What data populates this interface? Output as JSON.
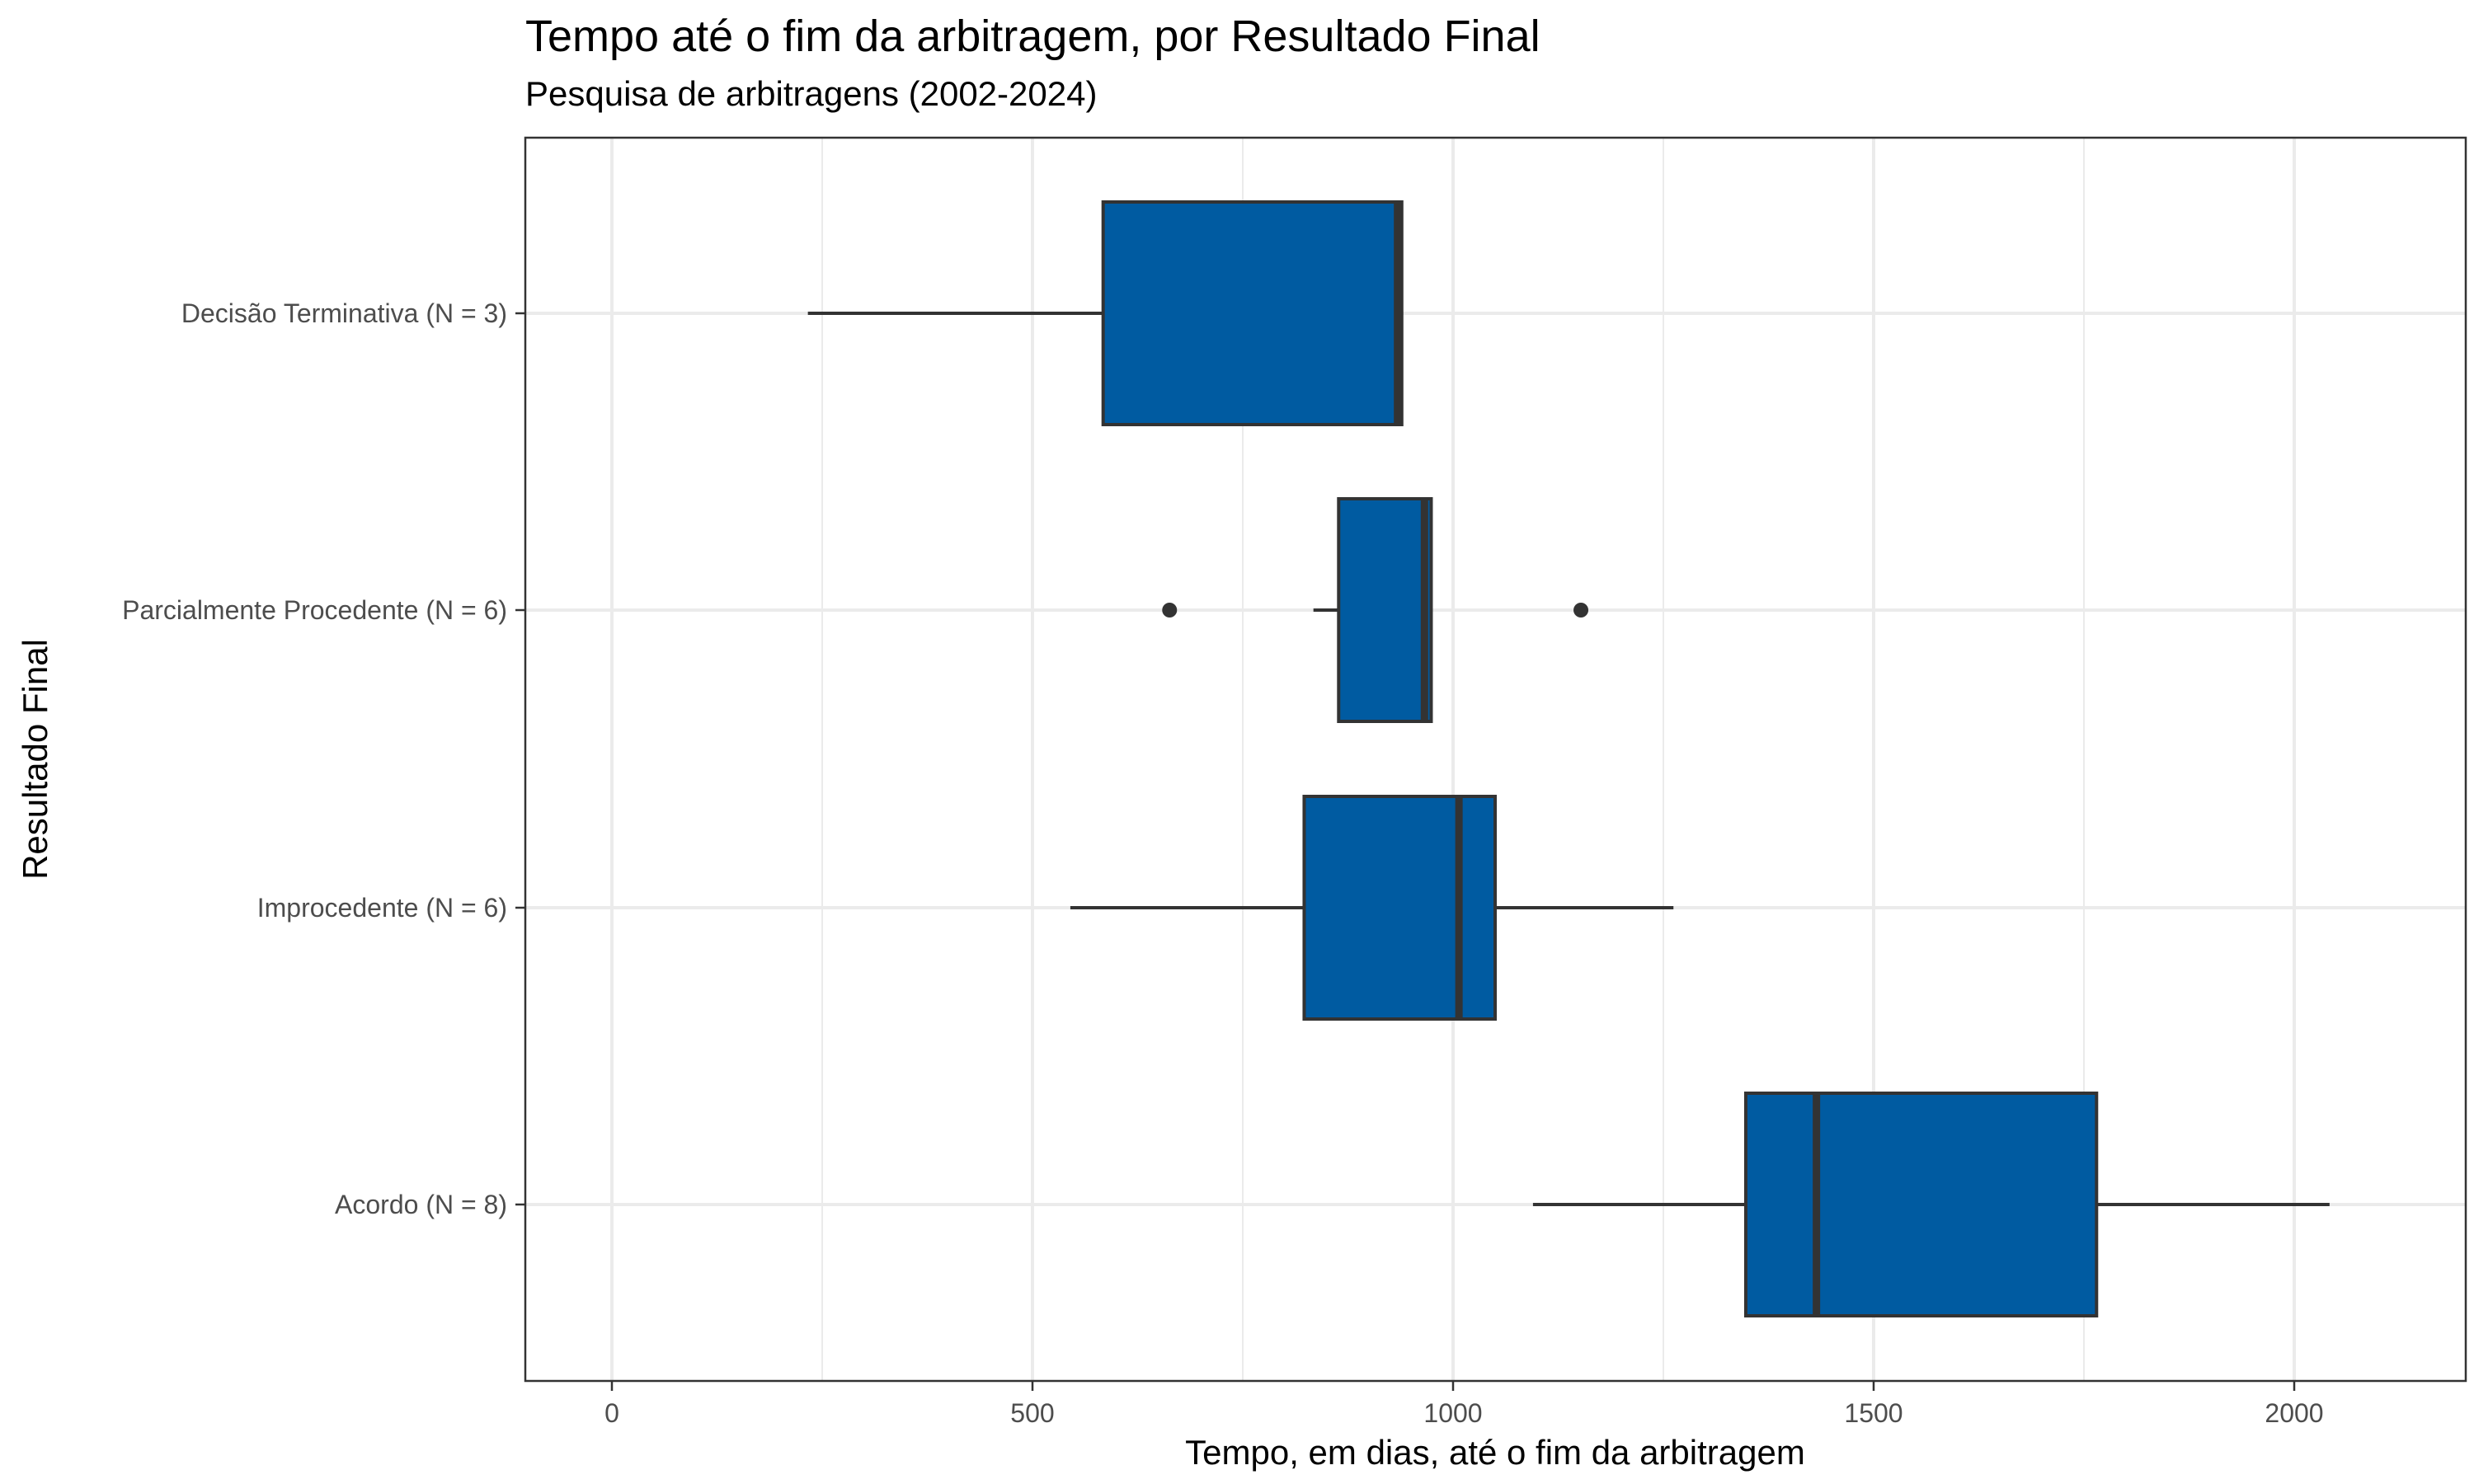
{
  "chart_data": {
    "type": "boxplot",
    "orientation": "horizontal",
    "title": "Tempo até o fim da arbitragem, por Resultado Final",
    "subtitle": "Pesquisa de arbitragens (2002-2024)",
    "xlabel": "Tempo, em dias, até o fim da arbitragem",
    "ylabel": "Resultado Final",
    "xlim": [
      -100,
      2200
    ],
    "xticks": [
      0,
      500,
      1000,
      1500,
      2000
    ],
    "x_tick_labels": [
      "0",
      "500",
      "1000",
      "1500",
      "2000"
    ],
    "grid": true,
    "box_color": "#005BA1",
    "line_color": "#333333",
    "categories": [
      "Decisão Terminativa (N = 3)",
      "Parcialmente Procedente (N = 6)",
      "Improcedente (N = 6)",
      "Acordo (N = 8)"
    ],
    "boxes": [
      {
        "category": "Decisão Terminativa (N = 3)",
        "whisker_low": 233,
        "q1": 584,
        "median": 934,
        "q3": 939,
        "whisker_high": 939,
        "outliers": []
      },
      {
        "category": "Parcialmente Procedente (N = 6)",
        "whisker_low": 834,
        "q1": 864,
        "median": 966,
        "q3": 974,
        "whisker_high": 974,
        "outliers": [
          663,
          1152
        ]
      },
      {
        "category": "Improcedente (N = 6)",
        "whisker_low": 545,
        "q1": 823,
        "median": 1007,
        "q3": 1050,
        "whisker_high": 1262,
        "outliers": []
      },
      {
        "category": "Acordo (N = 8)",
        "whisker_low": 1095,
        "q1": 1348,
        "median": 1432,
        "q3": 1765,
        "whisker_high": 2042,
        "outliers": []
      }
    ]
  }
}
